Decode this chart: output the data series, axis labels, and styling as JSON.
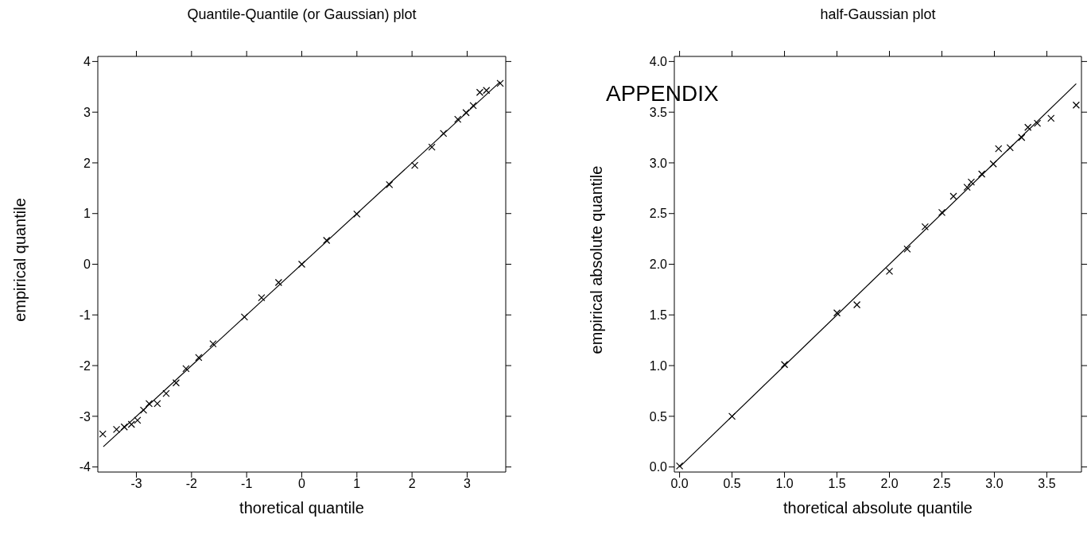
{
  "chart_data": [
    {
      "type": "scatter",
      "title": "Quantile-Quantile (or Gaussian) plot",
      "xlabel": "thoretical quantile",
      "ylabel": "empirical quantile",
      "xlim": [
        -3.7,
        3.7
      ],
      "ylim": [
        -4.1,
        4.1
      ],
      "xticks": [
        -3,
        -2,
        -1,
        0,
        1,
        2,
        3
      ],
      "yticks": [
        -4,
        -3,
        -2,
        -1,
        0,
        1,
        2,
        3,
        4
      ],
      "marker": "cross",
      "grid": false,
      "series": [
        {
          "color": "#000000",
          "x": [
            -3.61,
            -3.36,
            -3.22,
            -3.09,
            -2.98,
            -2.87,
            -2.77,
            -2.62,
            -2.46,
            -2.28,
            -2.1,
            -1.87,
            -1.61,
            -1.04,
            -0.73,
            -0.42,
            0,
            0.45,
            1.0,
            1.59,
            2.05,
            2.36,
            2.57,
            2.83,
            2.98,
            3.11,
            3.23,
            3.35,
            3.6
          ],
          "values": [
            -3.35,
            -3.26,
            -3.21,
            -3.16,
            -3.08,
            -2.88,
            -2.75,
            -2.75,
            -2.55,
            -2.34,
            -2.06,
            -1.84,
            -1.57,
            -1.04,
            -0.66,
            -0.36,
            0,
            0.47,
            0.99,
            1.57,
            1.95,
            2.31,
            2.58,
            2.86,
            2.99,
            3.13,
            3.39,
            3.43,
            3.57
          ]
        },
        {
          "type": "line",
          "color": "#000000",
          "marker": "none",
          "x": [
            -3.6,
            3.6
          ],
          "values": [
            -3.6,
            3.6
          ]
        }
      ]
    },
    {
      "type": "scatter",
      "title": "half-Gaussian plot",
      "xlabel": "thoretical absolute quantile",
      "ylabel": "empirical absolute quantile",
      "xlim": [
        -0.05,
        3.83
      ],
      "ylim": [
        -0.05,
        4.05
      ],
      "xticks": [
        {
          "value": 0,
          "label": "0.0"
        },
        0.5,
        {
          "value": 1,
          "label": "1.0"
        },
        1.5,
        {
          "value": 2,
          "label": "2.0"
        },
        2.5,
        {
          "value": 3,
          "label": "3.0"
        },
        3.5
      ],
      "yticks": [
        {
          "value": 0,
          "label": "0.0"
        },
        0.5,
        {
          "value": 1,
          "label": "1.0"
        },
        1.5,
        {
          "value": 2,
          "label": "2.0"
        },
        2.5,
        {
          "value": 3,
          "label": "3.0"
        },
        3.5,
        {
          "value": 4,
          "label": "4.0"
        }
      ],
      "marker": "cross",
      "grid": false,
      "annotations": [
        "APPENDIX"
      ],
      "series": [
        {
          "color": "#000000",
          "x": [
            0,
            0.5,
            1.0,
            1.5,
            1.69,
            2.0,
            2.17,
            2.34,
            2.5,
            2.61,
            2.74,
            2.78,
            2.88,
            2.99,
            3.04,
            3.15,
            3.26,
            3.32,
            3.41,
            3.54,
            3.78
          ],
          "values": [
            0.01,
            0.5,
            1.01,
            1.52,
            1.6,
            1.93,
            2.15,
            2.37,
            2.51,
            2.67,
            2.76,
            2.81,
            2.89,
            2.99,
            3.14,
            3.15,
            3.25,
            3.35,
            3.39,
            3.44,
            3.57
          ]
        },
        {
          "type": "line",
          "color": "#000000",
          "marker": "none",
          "x": [
            0,
            3.78
          ],
          "values": [
            0,
            3.78
          ]
        }
      ]
    }
  ]
}
